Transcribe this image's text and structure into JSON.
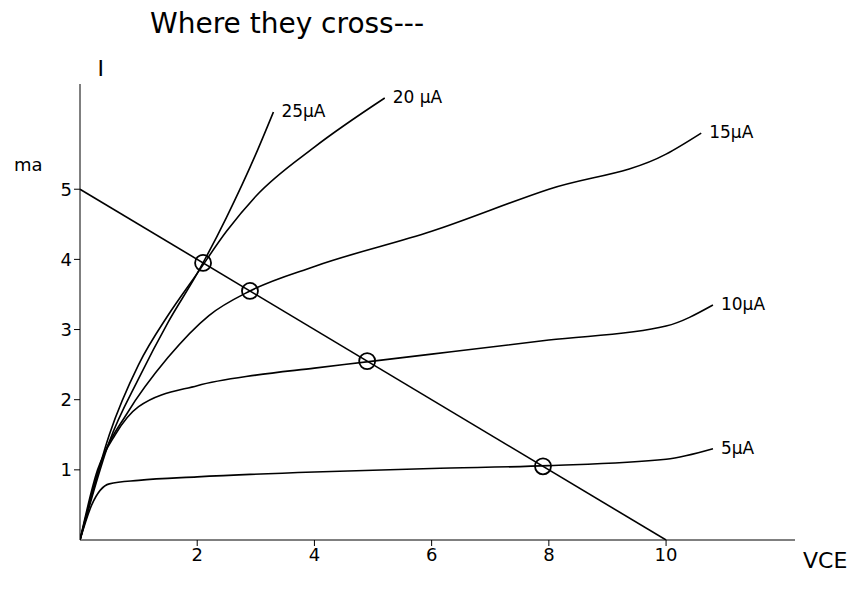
{
  "chart_data": {
    "type": "line",
    "title": "Where they cross---",
    "x_label": "VCE",
    "y_label": "I",
    "y_unit": "ma",
    "xlim": [
      0,
      12.2
    ],
    "ylim": [
      0,
      6.5
    ],
    "xticks": [
      2,
      4,
      6,
      8,
      10
    ],
    "yticks": [
      1,
      2,
      3,
      4,
      5
    ],
    "grid": false,
    "series": [
      {
        "name": "25μA",
        "color": "#000000",
        "x": [
          0,
          0.5,
          1,
          1.5,
          2,
          2.5,
          3,
          3.3
        ],
        "values": [
          0,
          1.4,
          2.3,
          3.1,
          3.8,
          4.6,
          5.5,
          6.1
        ]
      },
      {
        "name": "20 μA",
        "color": "#000000",
        "x": [
          0,
          0.5,
          1,
          1.5,
          2,
          2.5,
          3,
          4,
          5.2
        ],
        "values": [
          0,
          1.5,
          2.5,
          3.2,
          3.8,
          4.4,
          4.9,
          5.6,
          6.3
        ]
      },
      {
        "name": "15μA",
        "color": "#000000",
        "x": [
          0,
          0.4,
          0.8,
          1.5,
          2.2,
          2.9,
          4,
          6,
          8,
          10,
          10.6
        ],
        "values": [
          0,
          1.2,
          1.8,
          2.6,
          3.2,
          3.55,
          3.9,
          4.4,
          5.0,
          5.5,
          5.8
        ]
      },
      {
        "name": "10μA",
        "color": "#000000",
        "x": [
          0,
          0.3,
          0.6,
          1,
          2,
          3,
          4,
          5,
          6,
          8,
          10,
          10.8
        ],
        "values": [
          0,
          1.0,
          1.5,
          1.9,
          2.2,
          2.35,
          2.45,
          2.55,
          2.65,
          2.85,
          3.05,
          3.35
        ]
      },
      {
        "name": "5μA",
        "color": "#000000",
        "x": [
          0,
          0.2,
          0.5,
          1,
          2,
          4,
          6,
          8,
          10,
          10.8
        ],
        "values": [
          0,
          0.5,
          0.8,
          0.85,
          0.9,
          0.97,
          1.02,
          1.06,
          1.15,
          1.3
        ]
      }
    ],
    "load_line": {
      "color": "#000000",
      "x": [
        0,
        10
      ],
      "values": [
        5,
        0
      ]
    },
    "circled_points": {
      "color": "#000000",
      "x": [
        2.1,
        2.9,
        4.9,
        7.9
      ],
      "values": [
        3.95,
        3.55,
        2.55,
        1.05
      ]
    }
  }
}
